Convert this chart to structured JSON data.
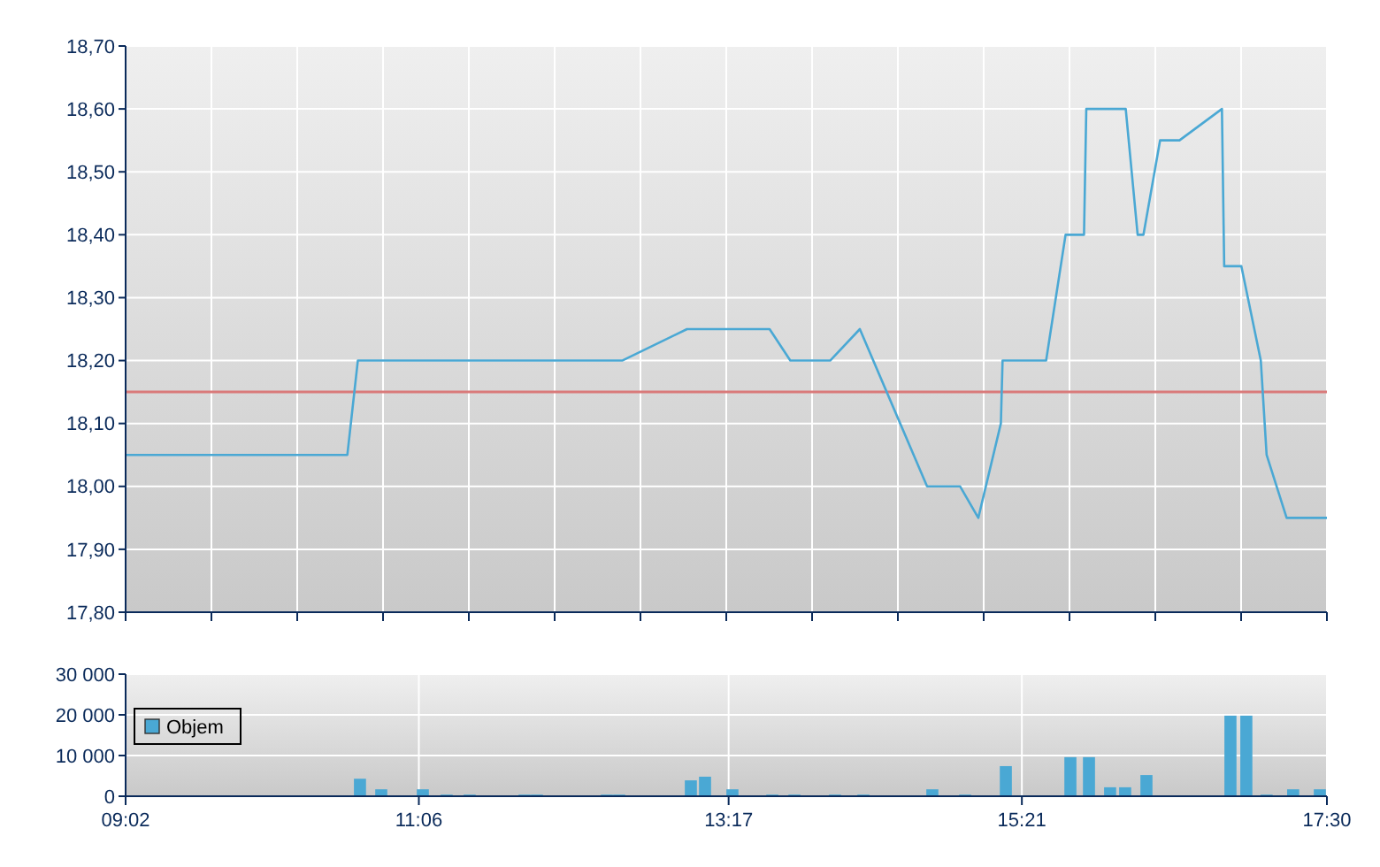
{
  "chart_data": [
    {
      "type": "line",
      "x": [
        9.0333,
        10.596,
        10.67,
        12.533,
        12.99,
        13.572,
        13.718,
        13.999,
        14.208,
        14.682,
        14.915,
        15.043,
        15.202,
        15.214,
        15.521,
        15.658,
        15.788,
        15.804,
        16.082,
        16.166,
        16.207,
        16.324,
        16.461,
        16.76,
        16.776,
        16.897,
        17.034,
        17.075,
        17.216,
        17.5
      ],
      "series": [
        {
          "color": "#4aa8d4",
          "values": [
            18.05,
            18.05,
            18.2,
            18.2,
            18.25,
            18.25,
            18.2,
            18.2,
            18.25,
            18.0,
            18.0,
            17.95,
            18.1,
            18.2,
            18.2,
            18.4,
            18.4,
            18.6,
            18.6,
            18.4,
            18.4,
            18.55,
            18.55,
            18.6,
            18.35,
            18.35,
            18.2,
            18.05,
            17.95,
            17.95
          ]
        }
      ],
      "xlim": [
        9.0333,
        17.5
      ],
      "xticks": [
        {
          "value": 9.0333,
          "label": null
        },
        {
          "value": 9.6381,
          "label": null
        },
        {
          "value": 10.2429,
          "label": null
        },
        {
          "value": 10.8476,
          "label": null
        },
        {
          "value": 11.4524,
          "label": null
        },
        {
          "value": 12.0571,
          "label": null
        },
        {
          "value": 12.6619,
          "label": null
        },
        {
          "value": 13.2667,
          "label": null
        },
        {
          "value": 13.8714,
          "label": null
        },
        {
          "value": 14.4762,
          "label": null
        },
        {
          "value": 15.081,
          "label": null
        },
        {
          "value": 15.6857,
          "label": null
        },
        {
          "value": 16.2905,
          "label": null
        },
        {
          "value": 16.8952,
          "label": null
        },
        {
          "value": 17.5,
          "label": null
        }
      ],
      "ylim": [
        17.8,
        18.7
      ],
      "yticks": [
        {
          "value": 17.8,
          "label": "17,80"
        },
        {
          "value": 17.9,
          "label": "17,90"
        },
        {
          "value": 18.0,
          "label": "18,00"
        },
        {
          "value": 18.1,
          "label": "18,10"
        },
        {
          "value": 18.2,
          "label": "18,20"
        },
        {
          "value": 18.3,
          "label": "18,30"
        },
        {
          "value": 18.4,
          "label": "18,40"
        },
        {
          "value": 18.5,
          "label": "18,50"
        },
        {
          "value": 18.6,
          "label": "18,60"
        },
        {
          "value": 18.7,
          "label": "18,70"
        }
      ],
      "ref_lines": [
        {
          "axis": "y",
          "value": 18.15,
          "color": "#d97a7a"
        }
      ],
      "tick_labels": "y",
      "grid": true,
      "legend": false
    },
    {
      "type": "bar",
      "x": [
        10.685,
        10.835,
        11.128,
        11.296,
        11.458,
        11.845,
        11.932,
        12.425,
        12.512,
        13.017,
        13.117,
        13.31,
        13.591,
        13.747,
        14.033,
        14.233,
        14.719,
        14.95,
        15.237,
        15.692,
        15.823,
        15.972,
        16.078,
        16.228,
        16.82,
        16.932,
        17.075,
        17.262,
        17.45
      ],
      "series": [
        {
          "name": "Objem",
          "color": "#4aa8d4",
          "values": [
            4300,
            1700,
            1700,
            400,
            400,
            400,
            400,
            400,
            400,
            3900,
            4800,
            1700,
            400,
            400,
            400,
            400,
            1700,
            400,
            7400,
            9600,
            9600,
            2200,
            2200,
            5200,
            19800,
            19800,
            400,
            1700,
            1700
          ]
        }
      ],
      "xlim": [
        9.0333,
        17.5
      ],
      "xticks": [
        {
          "value": 9.0333,
          "label": "09:02"
        },
        {
          "value": 11.1,
          "label": "11:06"
        },
        {
          "value": 13.2833,
          "label": "13:17"
        },
        {
          "value": 15.35,
          "label": "15:21"
        },
        {
          "value": 17.5,
          "label": "17:30"
        }
      ],
      "ylim": [
        0,
        30000
      ],
      "yticks": [
        {
          "value": 0,
          "label": "0"
        },
        {
          "value": 10000,
          "label": "10 000"
        },
        {
          "value": 20000,
          "label": "20 000"
        },
        {
          "value": 30000,
          "label": "30 000"
        }
      ],
      "grid": true,
      "legend": "left"
    }
  ]
}
